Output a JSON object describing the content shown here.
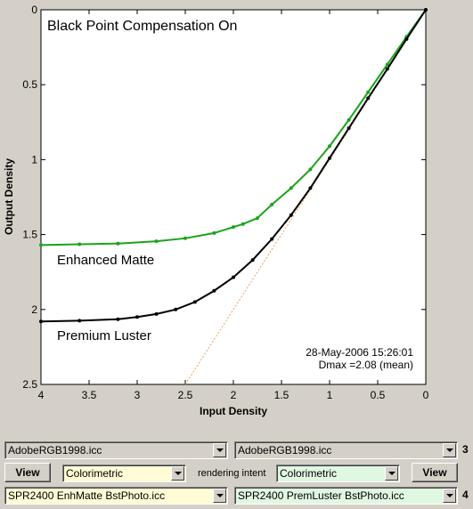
{
  "chart_data": {
    "type": "line",
    "title": "Black Point Compensation On",
    "xlabel": "Input Density",
    "ylabel": "Output Density",
    "xlim": [
      4,
      0
    ],
    "ylim": [
      2.5,
      0
    ],
    "x_ticks": [
      "4",
      "3.5",
      "3",
      "2.5",
      "2",
      "1.5",
      "1",
      "0.5",
      "0"
    ],
    "y_ticks": [
      "0",
      "0.5",
      "1",
      "1.5",
      "2",
      "2.5"
    ],
    "grid": false,
    "series": [
      {
        "name": "Enhanced Matte",
        "color": "#1aa31a",
        "x": [
          4.0,
          3.6,
          3.2,
          2.8,
          2.5,
          2.2,
          2.0,
          1.9,
          1.75,
          1.6,
          1.4,
          1.2,
          1.0,
          0.8,
          0.6,
          0.4,
          0.2,
          0.0
        ],
        "y": [
          1.57,
          1.565,
          1.56,
          1.545,
          1.525,
          1.49,
          1.45,
          1.43,
          1.39,
          1.3,
          1.19,
          1.065,
          0.91,
          0.735,
          0.55,
          0.365,
          0.18,
          0.0
        ]
      },
      {
        "name": "Premium Luster",
        "color": "#000000",
        "x": [
          4.0,
          3.6,
          3.2,
          3.0,
          2.8,
          2.6,
          2.4,
          2.2,
          2.0,
          1.8,
          1.6,
          1.4,
          1.2,
          1.0,
          0.8,
          0.6,
          0.4,
          0.2,
          0.0
        ],
        "y": [
          2.08,
          2.075,
          2.065,
          2.05,
          2.03,
          2.0,
          1.95,
          1.875,
          1.785,
          1.67,
          1.53,
          1.37,
          1.19,
          0.99,
          0.79,
          0.59,
          0.395,
          0.195,
          0.0
        ]
      }
    ],
    "reference_line": {
      "color": "#e6a25a",
      "style": "dotted",
      "x": [
        2.5,
        0
      ],
      "y": [
        2.5,
        0
      ]
    },
    "annotations": {
      "series_label_1": "Enhanced Matte",
      "series_label_2": "Premium Luster",
      "timestamp": "28-May-2006 15:26:01",
      "dmax": "Dmax =2.08 (mean)"
    }
  },
  "controls": {
    "row1_left_select": "AdobeRGB1998.icc",
    "row1_right_select": "AdobeRGB1998.icc",
    "row1_number": "3",
    "view_left_label": "View",
    "intent_left_select": "Colorimetric",
    "rendering_intent_label": "rendering intent",
    "intent_right_select": "Colorimetric",
    "view_right_label": "View",
    "row3_left_select": "SPR2400 EnhMatte BstPhoto.icc",
    "row3_right_select": "SPR2400 PremLuster BstPhoto.icc",
    "row3_number": "4"
  }
}
